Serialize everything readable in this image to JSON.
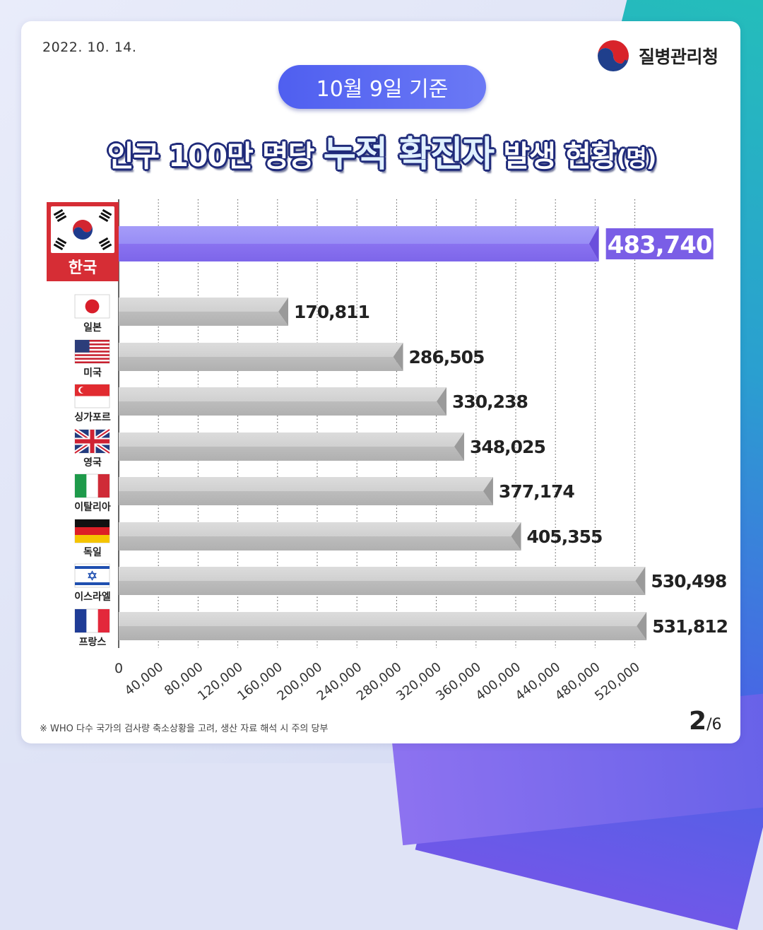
{
  "date": "2022. 10. 14.",
  "agency": "질병관리청",
  "badge": "10월 9일 기준",
  "title": {
    "part1": "인구 100만 명당 ",
    "highlight": "누적 확진자",
    "part2": " 발생 현황",
    "unit": "(명)"
  },
  "chart_data": {
    "type": "bar",
    "orientation": "horizontal",
    "categories": [
      "한국",
      "일본",
      "미국",
      "싱가포르",
      "영국",
      "이탈리아",
      "독일",
      "이스라엘",
      "프랑스"
    ],
    "values": [
      483740,
      170811,
      286505,
      330238,
      348025,
      377174,
      405355,
      530498,
      531812
    ],
    "value_labels": [
      "483,740",
      "170,811",
      "286,505",
      "330,238",
      "348,025",
      "377,174",
      "405,355",
      "530,498",
      "531,812"
    ],
    "highlight_category": "한국",
    "x_ticks": [
      "0",
      "40,000",
      "80,000",
      "120,000",
      "160,000",
      "200,000",
      "240,000",
      "280,000",
      "320,000",
      "360,000",
      "400,000",
      "440,000",
      "480,000",
      "520,000"
    ],
    "xlim": [
      0,
      540000
    ],
    "grid": "vertical-dotted",
    "colors": {
      "highlight": "#8f7df5",
      "highlight_label_bg": "#7a5ee6",
      "bar": "#cfcfcf",
      "bar_edge": "#a9a9a9"
    }
  },
  "footnote": "※ WHO 다수 국가의 검사량 축소상황을 고려, 생산 자료 해석 시 주의 당부",
  "page": {
    "current": "2",
    "total": "/6"
  }
}
